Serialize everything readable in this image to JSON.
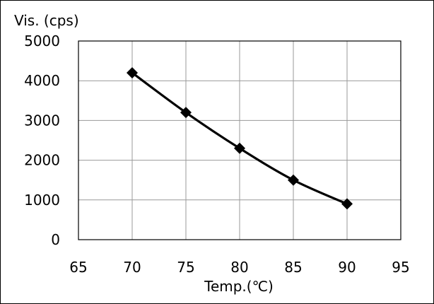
{
  "chart_data": {
    "type": "line",
    "title": "",
    "xlabel": "Temp.(℃)",
    "ylabel": "Vis. (cps)",
    "xlim": [
      65,
      95
    ],
    "ylim": [
      0,
      5000
    ],
    "xticks": [
      65,
      70,
      75,
      80,
      85,
      90,
      95
    ],
    "yticks": [
      0,
      1000,
      2000,
      3000,
      4000,
      5000
    ],
    "grid": true,
    "legend": "none",
    "series": [
      {
        "x": [
          70,
          75,
          80,
          85,
          90
        ],
        "y": [
          4200,
          3200,
          2300,
          1500,
          900
        ],
        "color": "#000000",
        "marker": "diamond",
        "smooth": true
      }
    ]
  }
}
